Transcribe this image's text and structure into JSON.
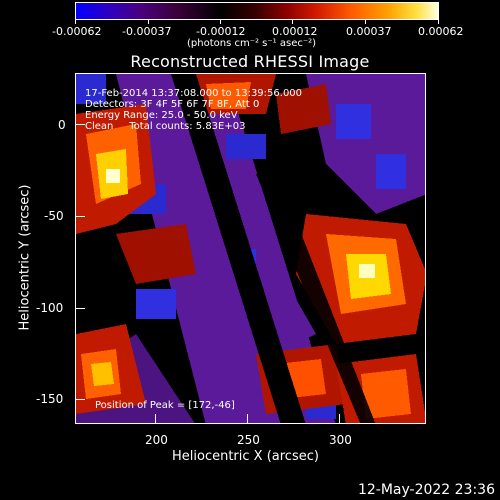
{
  "colorbar": {
    "ticks": [
      "-0.00062",
      "-0.00037",
      "-0.00012",
      "0.00012",
      "0.00037",
      "0.00062"
    ],
    "units": "(photons cm⁻² s⁻¹ asec⁻²)"
  },
  "title": "Reconstructed RHESSI Image",
  "info": {
    "line1": "17-Feb-2014 13:37:08.000 to 13:39:56.000",
    "line2": "Detectors: 3F 4F 5F 6F 7F 8F, Att 0",
    "line3": "Energy Range: 25.0 - 50.0 keV",
    "line4": "Clean     Total counts: 5.83E+03",
    "peak": "Position of Peak = [172,-46]"
  },
  "axes": {
    "xlabel": "Heliocentric X (arcsec)",
    "ylabel": "Heliocentric Y (arcsec)",
    "xticks": [
      "200",
      "250",
      "300"
    ],
    "yticks": [
      "0",
      "-50",
      "-100",
      "-150"
    ]
  },
  "footer": {
    "date": "12-May-2022 23:36"
  }
}
